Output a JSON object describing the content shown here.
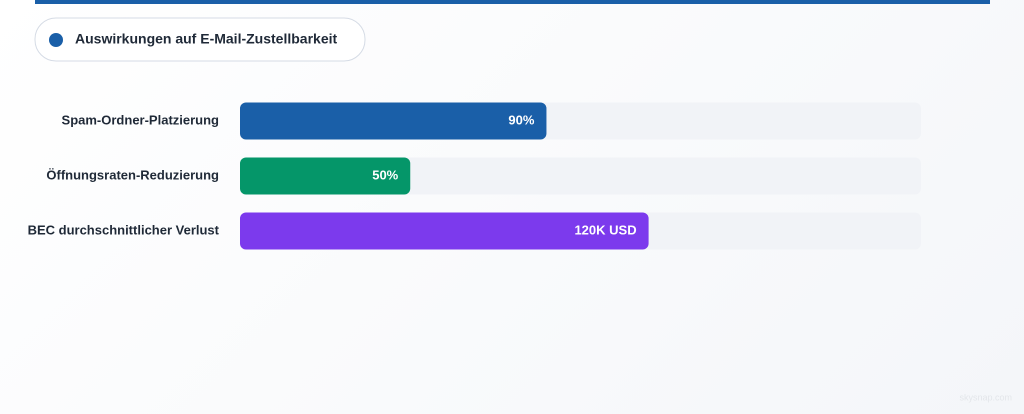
{
  "chart_data": {
    "type": "bar",
    "orientation": "horizontal",
    "categories": [
      "Spam-Ordner-Platzierung",
      "Öffnungsraten-Reduzierung",
      "BEC durchschnittlicher Verlust"
    ],
    "series": [
      {
        "name": "Auswirkungen auf E-Mail-Zustellbarkeit",
        "color": "#1a5fa8",
        "values": [
          90,
          50,
          120
        ],
        "value_labels": [
          "90%",
          "50%",
          "120K USD"
        ],
        "colors": [
          "#1a5fa8",
          "#059669",
          "#7c3aed"
        ]
      }
    ],
    "xlim": [
      0,
      200
    ],
    "track_color": "#f1f3f7"
  },
  "watermark": "skysnap.com"
}
